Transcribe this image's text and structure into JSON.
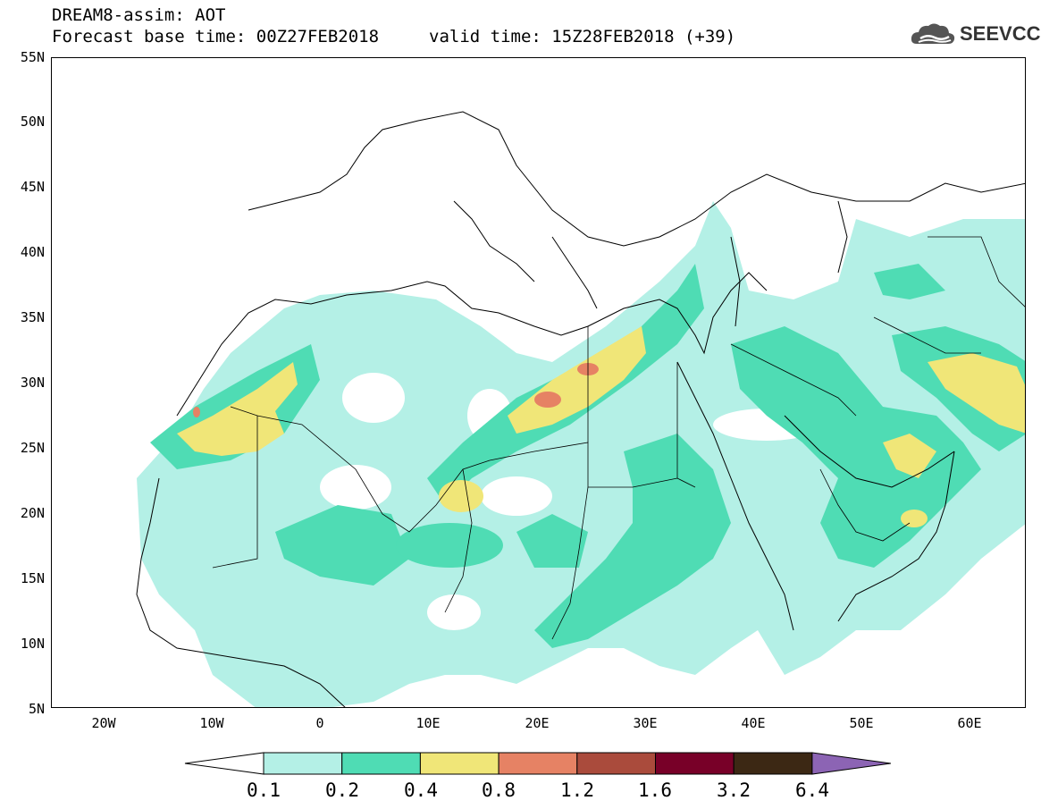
{
  "header": {
    "title_line1": "DREAM8-assim: AOT",
    "title_line2": "Forecast base time: 00Z27FEB2018",
    "valid_time": "valid time: 15Z28FEB2018 (+39)"
  },
  "logo": {
    "text": "SEEVCCC",
    "icon": "cloud-icon"
  },
  "map": {
    "lat_labels": [
      "55N",
      "50N",
      "45N",
      "40N",
      "35N",
      "30N",
      "25N",
      "20N",
      "15N",
      "10N",
      "5N"
    ],
    "lon_labels": [
      "20W",
      "10W",
      "0",
      "10E",
      "20E",
      "30E",
      "40E",
      "50E",
      "60E"
    ],
    "lon_range": [
      -25,
      65
    ],
    "lat_range": [
      5,
      55
    ]
  },
  "colorbar": {
    "labels": [
      "0.1",
      "0.2",
      "0.4",
      "0.8",
      "1.2",
      "1.6",
      "3.2",
      "6.4"
    ],
    "colors": [
      "#ffffff",
      "#b4f0e6",
      "#4fdcb4",
      "#f0e678",
      "#e68264",
      "#aa4b3c",
      "#780028",
      "#3c2814",
      "#8c64b4"
    ]
  }
}
